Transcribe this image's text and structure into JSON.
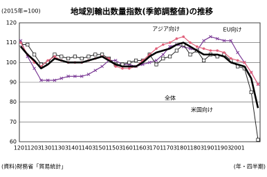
{
  "chart_data": {
    "type": "line",
    "title": "地域別輸出数量指数(季節調整値)の推移",
    "subtitle": "(2015年=100)",
    "source": "(資料)財務省「貿易統計」",
    "x_label": "(年・四半期)",
    "categories": [
      "1201",
      null,
      "1203",
      null,
      "1301",
      null,
      "1303",
      null,
      "1401",
      null,
      "1403",
      null,
      "1501",
      null,
      "1503",
      null,
      "1601",
      null,
      "1603",
      null,
      "1701",
      null,
      "1703",
      null,
      "1801",
      null,
      "1803",
      null,
      "1901",
      null,
      "1903",
      null,
      "2001",
      null,
      null,
      null
    ],
    "ylim": [
      60,
      120
    ],
    "yticks": [
      60,
      70,
      80,
      90,
      100,
      110,
      120
    ],
    "grid": true,
    "series": [
      {
        "name": "EU向け",
        "color": "#7b3a96",
        "marker": "x",
        "width": 1.2,
        "values": [
          111,
          103,
          97,
          91,
          91,
          91,
          92,
          93,
          93,
          93,
          94,
          96,
          98,
          101,
          101,
          99,
          99,
          98,
          99,
          100,
          101,
          104,
          108,
          109,
          108,
          107,
          106,
          111,
          113,
          112,
          111,
          111,
          105,
          100,
          95,
          89
        ]
      },
      {
        "name": "米国向け",
        "color": "#222222",
        "marker": "square",
        "width": 1,
        "values": [
          109,
          109,
          104,
          99,
          100,
          104,
          103,
          102,
          103,
          102,
          103,
          104,
          104,
          102,
          99,
          99,
          100,
          101,
          101,
          104,
          99,
          102,
          103,
          106,
          109,
          104,
          106,
          101,
          104,
          103,
          104,
          101,
          98,
          97,
          85,
          61
        ]
      },
      {
        "name": "アジア向け",
        "color": "#e0607a",
        "marker": "circle",
        "width": 1.2,
        "values": [
          110,
          104,
          100,
          98,
          101,
          103,
          101,
          100,
          100,
          100,
          101,
          102,
          103,
          102,
          98,
          97,
          97,
          98,
          101,
          104,
          107,
          109,
          110,
          112,
          113,
          110,
          108,
          107,
          106,
          106,
          105,
          102,
          101,
          100,
          95,
          89
        ]
      },
      {
        "name": "全体",
        "color": "#000000",
        "marker": "none",
        "width": 2.6,
        "values": [
          108,
          104,
          101,
          97,
          99,
          102,
          101,
          100,
          100,
          100,
          101,
          102,
          103,
          101,
          99,
          98,
          98,
          98,
          100,
          103,
          105,
          106,
          107,
          109,
          110,
          108,
          106,
          104,
          104,
          104,
          103,
          100,
          99,
          98,
          92,
          77
        ]
      }
    ]
  }
}
